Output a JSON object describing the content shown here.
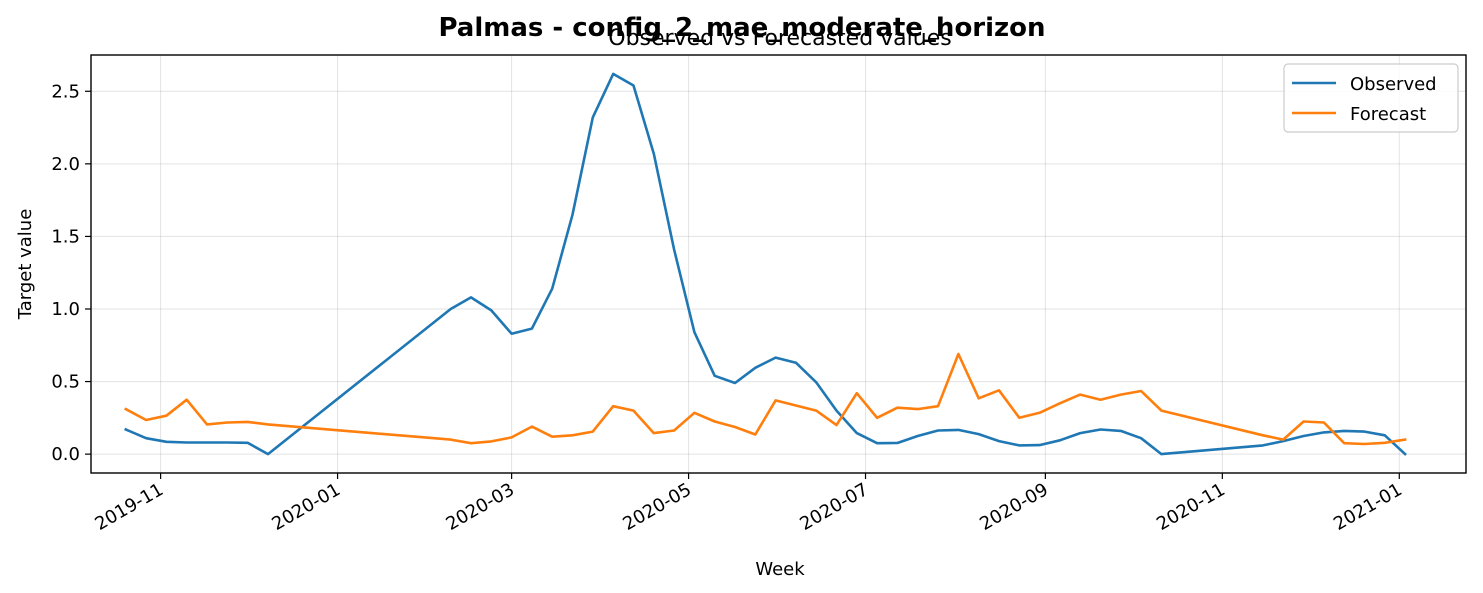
{
  "chart_data": {
    "type": "line",
    "title": "Palmas - config_2_mae_moderate_horizon",
    "subtitle": "Observed vs Forecasted values",
    "xlabel": "Week",
    "ylabel": "Target value",
    "xlim": [
      "2019-10-08",
      "2021-01-24"
    ],
    "ylim": [
      -0.13,
      2.75
    ],
    "x_ticks": [
      "2019-11-01",
      "2020-01-01",
      "2020-03-01",
      "2020-05-01",
      "2020-07-01",
      "2020-09-01",
      "2020-11-01",
      "2021-01-01"
    ],
    "x_tick_labels": [
      "2019-11",
      "2020-01",
      "2020-03",
      "2020-05",
      "2020-07",
      "2020-09",
      "2020-11",
      "2021-01"
    ],
    "y_ticks": [
      0.0,
      0.5,
      1.0,
      1.5,
      2.0,
      2.5
    ],
    "y_tick_labels": [
      "0.0",
      "0.5",
      "1.0",
      "1.5",
      "2.0",
      "2.5"
    ],
    "grid": true,
    "legend_position": "top-right",
    "series": [
      {
        "name": "Observed",
        "color": "#1f77b4",
        "points": [
          [
            "2019-10-20",
            0.17
          ],
          [
            "2019-10-27",
            0.11
          ],
          [
            "2019-11-03",
            0.085
          ],
          [
            "2019-11-10",
            0.08
          ],
          [
            "2019-11-17",
            0.08
          ],
          [
            "2019-11-24",
            0.08
          ],
          [
            "2019-12-01",
            0.078
          ],
          [
            "2019-12-08",
            0.0
          ],
          [
            "2020-02-09",
            1.0
          ],
          [
            "2020-02-16",
            1.08
          ],
          [
            "2020-02-23",
            0.99
          ],
          [
            "2020-03-01",
            0.83
          ],
          [
            "2020-03-08",
            0.865
          ],
          [
            "2020-03-15",
            1.14
          ],
          [
            "2020-03-22",
            1.65
          ],
          [
            "2020-03-29",
            2.32
          ],
          [
            "2020-04-05",
            2.62
          ],
          [
            "2020-04-12",
            2.54
          ],
          [
            "2020-04-19",
            2.07
          ],
          [
            "2020-04-26",
            1.41
          ],
          [
            "2020-05-03",
            0.84
          ],
          [
            "2020-05-10",
            0.54
          ],
          [
            "2020-05-17",
            0.49
          ],
          [
            "2020-05-24",
            0.595
          ],
          [
            "2020-05-31",
            0.665
          ],
          [
            "2020-06-07",
            0.63
          ],
          [
            "2020-06-14",
            0.495
          ],
          [
            "2020-06-21",
            0.3
          ],
          [
            "2020-06-28",
            0.145
          ],
          [
            "2020-07-05",
            0.075
          ],
          [
            "2020-07-12",
            0.077
          ],
          [
            "2020-07-19",
            0.125
          ],
          [
            "2020-07-26",
            0.163
          ],
          [
            "2020-08-02",
            0.167
          ],
          [
            "2020-08-09",
            0.138
          ],
          [
            "2020-08-16",
            0.09
          ],
          [
            "2020-08-23",
            0.06
          ],
          [
            "2020-08-30",
            0.062
          ],
          [
            "2020-09-06",
            0.095
          ],
          [
            "2020-09-13",
            0.145
          ],
          [
            "2020-09-20",
            0.17
          ],
          [
            "2020-09-27",
            0.16
          ],
          [
            "2020-10-04",
            0.11
          ],
          [
            "2020-10-11",
            0.0
          ],
          [
            "2020-11-15",
            0.06
          ],
          [
            "2020-11-22",
            0.09
          ],
          [
            "2020-11-29",
            0.125
          ],
          [
            "2020-12-06",
            0.15
          ],
          [
            "2020-12-13",
            0.16
          ],
          [
            "2020-12-20",
            0.155
          ],
          [
            "2020-12-27",
            0.13
          ],
          [
            "2021-01-03",
            0.0
          ]
        ]
      },
      {
        "name": "Forecast",
        "color": "#ff7f0e",
        "points": [
          [
            "2019-10-20",
            0.31
          ],
          [
            "2019-10-27",
            0.235
          ],
          [
            "2019-11-03",
            0.265
          ],
          [
            "2019-11-10",
            0.375
          ],
          [
            "2019-11-17",
            0.205
          ],
          [
            "2019-11-24",
            0.218
          ],
          [
            "2019-12-01",
            0.222
          ],
          [
            "2019-12-08",
            0.205
          ],
          [
            "2020-02-09",
            0.1
          ],
          [
            "2020-02-16",
            0.075
          ],
          [
            "2020-02-23",
            0.088
          ],
          [
            "2020-03-01",
            0.115
          ],
          [
            "2020-03-08",
            0.19
          ],
          [
            "2020-03-15",
            0.12
          ],
          [
            "2020-03-22",
            0.13
          ],
          [
            "2020-03-29",
            0.155
          ],
          [
            "2020-04-05",
            0.33
          ],
          [
            "2020-04-12",
            0.3
          ],
          [
            "2020-04-19",
            0.145
          ],
          [
            "2020-04-26",
            0.163
          ],
          [
            "2020-05-03",
            0.285
          ],
          [
            "2020-05-10",
            0.225
          ],
          [
            "2020-05-17",
            0.187
          ],
          [
            "2020-05-24",
            0.135
          ],
          [
            "2020-05-31",
            0.37
          ],
          [
            "2020-06-07",
            0.335
          ],
          [
            "2020-06-14",
            0.3
          ],
          [
            "2020-06-21",
            0.2
          ],
          [
            "2020-06-28",
            0.42
          ],
          [
            "2020-07-05",
            0.25
          ],
          [
            "2020-07-12",
            0.32
          ],
          [
            "2020-07-19",
            0.31
          ],
          [
            "2020-07-26",
            0.33
          ],
          [
            "2020-08-02",
            0.69
          ],
          [
            "2020-08-09",
            0.385
          ],
          [
            "2020-08-16",
            0.44
          ],
          [
            "2020-08-23",
            0.25
          ],
          [
            "2020-08-30",
            0.285
          ],
          [
            "2020-09-06",
            0.35
          ],
          [
            "2020-09-13",
            0.41
          ],
          [
            "2020-09-20",
            0.375
          ],
          [
            "2020-09-27",
            0.41
          ],
          [
            "2020-10-04",
            0.435
          ],
          [
            "2020-10-11",
            0.3
          ],
          [
            "2020-11-15",
            0.13
          ],
          [
            "2020-11-22",
            0.1
          ],
          [
            "2020-11-29",
            0.225
          ],
          [
            "2020-12-06",
            0.218
          ],
          [
            "2020-12-13",
            0.075
          ],
          [
            "2020-12-20",
            0.07
          ],
          [
            "2020-12-27",
            0.078
          ],
          [
            "2021-01-03",
            0.1
          ]
        ]
      }
    ]
  }
}
